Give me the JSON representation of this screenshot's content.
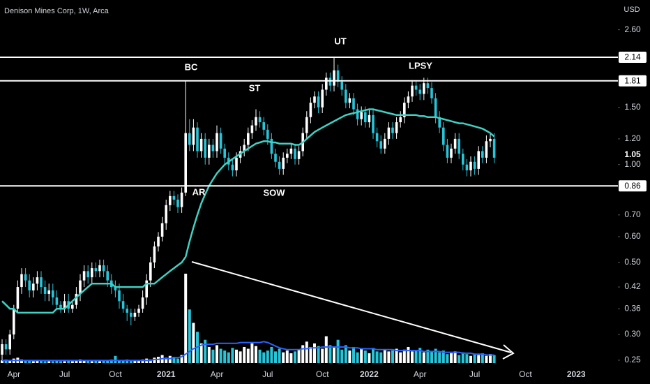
{
  "chart_data": {
    "type": "candlestick",
    "title": "Denison Mines Corp, 1W, Arca",
    "yaxis_label": "USD",
    "log": true,
    "ylim": [
      0.245,
      3.21
    ],
    "yticks": [
      {
        "value": 2.6,
        "label": "2.60"
      },
      {
        "value": 1.5,
        "label": "1.50"
      },
      {
        "value": 1.2,
        "label": "1.20"
      },
      {
        "value": 1.0,
        "label": "1.00"
      },
      {
        "value": 0.7,
        "label": "0.70"
      },
      {
        "value": 0.6,
        "label": "0.60"
      },
      {
        "value": 0.5,
        "label": "0.50"
      },
      0.42,
      0.36,
      {
        "value": 0.3,
        "label": "0.30"
      },
      0.25
    ],
    "levels": [
      2.14,
      1.81,
      0.86
    ],
    "annotations": [
      "BC",
      "ST",
      "UT",
      "LPSY",
      "AR",
      "SOW"
    ],
    "up_color": "#ffffff",
    "down_color": "#26c6da",
    "categories": [
      null,
      null,
      null,
      "Apr",
      null,
      null,
      null,
      null,
      null,
      null,
      null,
      null,
      null,
      null,
      null,
      null,
      "Jul",
      null,
      null,
      null,
      null,
      null,
      null,
      null,
      null,
      null,
      null,
      null,
      null,
      "Oct",
      null,
      null,
      null,
      null,
      null,
      null,
      null,
      null,
      null,
      null,
      null,
      null,
      "2021",
      null,
      null,
      null,
      null,
      null,
      null,
      null,
      null,
      null,
      null,
      null,
      null,
      "Apr",
      null,
      null,
      null,
      null,
      null,
      null,
      null,
      null,
      null,
      null,
      null,
      null,
      "Jul",
      null,
      null,
      null,
      null,
      null,
      null,
      null,
      null,
      null,
      null,
      null,
      null,
      null,
      "Oct",
      null,
      null,
      null,
      null,
      null,
      null,
      null,
      null,
      null,
      null,
      null,
      "2022",
      null,
      null,
      null,
      null,
      null,
      null,
      null,
      null,
      null,
      null,
      null,
      null,
      "Apr",
      null,
      null,
      null,
      null,
      null,
      null,
      null,
      null,
      null,
      null,
      null,
      null,
      null,
      "Jul",
      null,
      null,
      null,
      null,
      null,
      null,
      null,
      null,
      null,
      null,
      null,
      null,
      "Oct",
      null,
      null,
      null,
      null,
      null,
      null,
      null,
      null,
      null,
      null,
      null,
      null,
      "2023",
      null,
      null,
      null,
      null,
      null,
      null,
      null,
      null,
      null
    ],
    "open": [
      0.26,
      0.28,
      0.27,
      0.3,
      0.36,
      0.42,
      0.46,
      0.44,
      0.41,
      0.43,
      0.45,
      0.42,
      0.4,
      0.41,
      0.39,
      0.37,
      0.36,
      0.38,
      0.36,
      0.37,
      0.4,
      0.44,
      0.47,
      0.45,
      0.48,
      0.47,
      0.49,
      0.47,
      0.44,
      0.42,
      0.41,
      0.38,
      0.36,
      0.35,
      0.34,
      0.35,
      0.36,
      0.39,
      0.44,
      0.5,
      0.56,
      0.6,
      0.66,
      0.75,
      0.8,
      0.78,
      0.74,
      0.82,
      1.25,
      1.15,
      1.3,
      1.1,
      1.2,
      1.05,
      1.15,
      1.1,
      1.25,
      1.12,
      1.05,
      1.0,
      0.96,
      1.05,
      1.1,
      1.15,
      1.25,
      1.32,
      1.4,
      1.35,
      1.28,
      1.2,
      1.08,
      1.02,
      0.97,
      1.05,
      1.08,
      1.12,
      1.04,
      1.1,
      1.25,
      1.4,
      1.55,
      1.62,
      1.5,
      1.7,
      1.85,
      1.75,
      1.95,
      1.8,
      1.7,
      1.55,
      1.6,
      1.48,
      1.38,
      1.45,
      1.35,
      1.42,
      1.25,
      1.18,
      1.12,
      1.2,
      1.3,
      1.25,
      1.35,
      1.4,
      1.55,
      1.62,
      1.75,
      1.7,
      1.65,
      1.78,
      1.72,
      1.6,
      1.4,
      1.3,
      1.15,
      1.05,
      1.12,
      1.2,
      1.08,
      1.0,
      0.96,
      1.02,
      0.97,
      1.1,
      1.05,
      1.18,
      1.2,
      null,
      null,
      null,
      null,
      null,
      null,
      null,
      null,
      null,
      null,
      null,
      null,
      null,
      null,
      null,
      null,
      null,
      null,
      null,
      null,
      null,
      null,
      null,
      null,
      null,
      null,
      null,
      null,
      null,
      null
    ],
    "high": [
      0.29,
      0.29,
      0.31,
      0.37,
      0.44,
      0.48,
      0.48,
      0.46,
      0.45,
      0.47,
      0.47,
      0.44,
      0.43,
      0.43,
      0.41,
      0.38,
      0.4,
      0.4,
      0.38,
      0.42,
      0.46,
      0.49,
      0.49,
      0.5,
      0.5,
      0.51,
      0.51,
      0.49,
      0.46,
      0.44,
      0.43,
      0.4,
      0.37,
      0.36,
      0.36,
      0.37,
      0.41,
      0.46,
      0.52,
      0.58,
      0.62,
      0.69,
      0.78,
      0.83,
      0.83,
      0.81,
      0.85,
      1.81,
      1.38,
      1.38,
      1.35,
      1.25,
      1.25,
      1.2,
      1.2,
      1.32,
      1.3,
      1.16,
      1.09,
      1.04,
      1.09,
      1.14,
      1.2,
      1.3,
      1.37,
      1.48,
      1.46,
      1.4,
      1.33,
      1.25,
      1.12,
      1.06,
      1.09,
      1.12,
      1.16,
      1.16,
      1.14,
      1.3,
      1.46,
      1.61,
      1.68,
      1.68,
      1.77,
      1.92,
      1.92,
      2.14,
      2.03,
      1.87,
      1.77,
      1.66,
      1.66,
      1.54,
      1.51,
      1.51,
      1.48,
      1.48,
      1.3,
      1.23,
      1.25,
      1.35,
      1.35,
      1.4,
      1.46,
      1.61,
      1.68,
      1.82,
      1.82,
      1.77,
      1.85,
      1.85,
      1.79,
      1.66,
      1.46,
      1.35,
      1.2,
      1.16,
      1.25,
      1.25,
      1.12,
      1.04,
      1.06,
      1.06,
      1.14,
      1.14,
      1.23,
      1.25,
      1.25,
      null,
      null,
      null,
      null,
      null,
      null,
      null,
      null,
      null,
      null,
      null,
      null,
      null,
      null,
      null,
      null,
      null,
      null,
      null,
      null,
      null,
      null,
      null,
      null,
      null,
      null,
      null,
      null,
      null,
      null
    ],
    "low": [
      0.25,
      0.26,
      0.26,
      0.29,
      0.35,
      0.4,
      0.42,
      0.39,
      0.39,
      0.41,
      0.4,
      0.38,
      0.38,
      0.37,
      0.36,
      0.35,
      0.35,
      0.35,
      0.35,
      0.36,
      0.38,
      0.42,
      0.43,
      0.43,
      0.45,
      0.45,
      0.45,
      0.42,
      0.4,
      0.39,
      0.36,
      0.35,
      0.33,
      0.32,
      0.33,
      0.34,
      0.35,
      0.37,
      0.42,
      0.48,
      0.54,
      0.58,
      0.63,
      0.72,
      0.75,
      0.71,
      0.71,
      0.8,
      1.1,
      1.1,
      1.05,
      1.05,
      1.0,
      1.0,
      1.05,
      1.05,
      1.08,
      1.0,
      0.96,
      0.92,
      0.92,
      1.01,
      1.06,
      1.1,
      1.2,
      1.27,
      1.3,
      1.23,
      1.15,
      1.04,
      0.98,
      0.93,
      0.93,
      1.01,
      1.04,
      1.0,
      1.0,
      1.06,
      1.2,
      1.34,
      1.49,
      1.44,
      1.44,
      1.63,
      1.68,
      1.68,
      1.73,
      1.63,
      1.49,
      1.49,
      1.42,
      1.32,
      1.32,
      1.3,
      1.3,
      1.2,
      1.13,
      1.08,
      1.08,
      1.15,
      1.2,
      1.2,
      1.3,
      1.34,
      1.49,
      1.56,
      1.63,
      1.58,
      1.58,
      1.65,
      1.54,
      1.34,
      1.25,
      1.1,
      1.01,
      1.01,
      1.08,
      1.04,
      0.96,
      0.92,
      0.92,
      0.93,
      0.93,
      1.01,
      1.01,
      1.13,
      1.01,
      null,
      null,
      null,
      null,
      null,
      null,
      null,
      null,
      null,
      null,
      null,
      null,
      null,
      null,
      null,
      null,
      null,
      null,
      null,
      null,
      null,
      null,
      null,
      null,
      null,
      null,
      null,
      null,
      null,
      null
    ],
    "close": [
      0.28,
      0.27,
      0.3,
      0.36,
      0.42,
      0.46,
      0.44,
      0.41,
      0.43,
      0.45,
      0.42,
      0.4,
      0.41,
      0.39,
      0.37,
      0.36,
      0.38,
      0.36,
      0.37,
      0.4,
      0.44,
      0.47,
      0.45,
      0.48,
      0.47,
      0.49,
      0.47,
      0.44,
      0.42,
      0.41,
      0.38,
      0.36,
      0.35,
      0.34,
      0.35,
      0.36,
      0.39,
      0.44,
      0.5,
      0.56,
      0.6,
      0.66,
      0.75,
      0.8,
      0.78,
      0.74,
      0.82,
      1.25,
      1.15,
      1.3,
      1.1,
      1.2,
      1.05,
      1.15,
      1.1,
      1.25,
      1.12,
      1.05,
      1.0,
      0.96,
      1.05,
      1.1,
      1.15,
      1.25,
      1.32,
      1.4,
      1.35,
      1.28,
      1.2,
      1.08,
      1.02,
      0.97,
      1.05,
      1.08,
      1.12,
      1.04,
      1.1,
      1.25,
      1.4,
      1.55,
      1.62,
      1.5,
      1.7,
      1.85,
      1.75,
      1.95,
      1.8,
      1.7,
      1.55,
      1.6,
      1.48,
      1.38,
      1.45,
      1.35,
      1.42,
      1.25,
      1.18,
      1.12,
      1.2,
      1.3,
      1.25,
      1.35,
      1.4,
      1.55,
      1.62,
      1.75,
      1.7,
      1.65,
      1.78,
      1.72,
      1.6,
      1.4,
      1.3,
      1.15,
      1.05,
      1.12,
      1.2,
      1.08,
      1.0,
      0.96,
      1.02,
      0.97,
      1.1,
      1.05,
      1.18,
      1.2,
      1.05,
      null,
      null,
      null,
      null,
      null,
      null,
      null,
      null,
      null,
      null,
      null,
      null,
      null,
      null,
      null,
      null,
      null,
      null,
      null,
      null,
      null,
      null,
      null,
      null,
      null,
      null,
      null,
      null,
      null,
      null
    ],
    "volume": [
      3,
      4,
      3,
      5,
      6,
      4,
      3,
      3,
      2,
      3,
      3,
      2,
      2,
      2,
      3,
      2,
      2,
      3,
      2,
      3,
      4,
      3,
      3,
      2,
      3,
      2,
      3,
      3,
      4,
      8,
      3,
      3,
      4,
      3,
      3,
      3,
      4,
      5,
      4,
      6,
      7,
      9,
      6,
      8,
      7,
      5,
      9,
      100,
      60,
      45,
      35,
      22,
      26,
      18,
      15,
      20,
      16,
      14,
      12,
      17,
      15,
      13,
      18,
      16,
      22,
      19,
      15,
      12,
      14,
      18,
      13,
      16,
      12,
      14,
      11,
      13,
      15,
      20,
      24,
      18,
      22,
      19,
      16,
      30,
      20,
      18,
      26,
      15,
      20,
      14,
      18,
      12,
      16,
      14,
      11,
      17,
      13,
      12,
      15,
      13,
      14,
      16,
      12,
      15,
      18,
      13,
      14,
      17,
      12,
      15,
      13,
      16,
      12,
      14,
      10,
      11,
      13,
      9,
      12,
      10,
      8,
      10,
      9,
      11,
      8,
      10,
      9,
      null,
      null,
      null,
      null,
      null,
      null,
      null,
      null,
      null,
      null,
      null,
      null,
      null,
      null,
      null,
      null,
      null,
      null,
      null,
      null,
      null,
      null,
      null,
      null,
      null,
      null,
      null,
      null,
      null,
      null
    ],
    "ma": {
      "color": "#3fd1c4",
      "values": [
        0.38,
        0.37,
        0.36,
        0.36,
        0.35,
        0.35,
        0.35,
        0.35,
        0.35,
        0.35,
        0.35,
        0.35,
        0.35,
        0.35,
        0.36,
        0.36,
        0.36,
        0.37,
        0.38,
        0.39,
        0.4,
        0.41,
        0.42,
        0.43,
        0.43,
        0.43,
        0.43,
        0.43,
        0.43,
        0.42,
        0.42,
        0.42,
        0.42,
        0.42,
        0.42,
        0.42,
        0.42,
        0.43,
        0.43,
        0.43,
        0.44,
        0.45,
        0.46,
        0.47,
        0.48,
        0.49,
        0.5,
        0.52,
        0.58,
        0.64,
        0.7,
        0.76,
        0.81,
        0.86,
        0.9,
        0.94,
        0.97,
        1.0,
        1.02,
        1.04,
        1.06,
        1.08,
        1.1,
        1.12,
        1.14,
        1.16,
        1.17,
        1.18,
        1.18,
        1.17,
        1.17,
        1.16,
        1.16,
        1.16,
        1.16,
        1.15,
        1.15,
        1.17,
        1.2,
        1.23,
        1.26,
        1.28,
        1.3,
        1.32,
        1.34,
        1.36,
        1.38,
        1.4,
        1.42,
        1.43,
        1.44,
        1.45,
        1.46,
        1.47,
        1.48,
        1.48,
        1.47,
        1.46,
        1.45,
        1.44,
        1.43,
        1.42,
        1.42,
        1.42,
        1.42,
        1.42,
        1.42,
        1.41,
        1.41,
        1.4,
        1.4,
        1.4,
        1.39,
        1.38,
        1.37,
        1.36,
        1.35,
        1.34,
        1.34,
        1.33,
        1.32,
        1.31,
        1.3,
        1.29,
        1.27,
        1.25,
        1.22,
        null,
        null,
        null,
        null,
        null,
        null,
        null,
        null,
        null,
        null,
        null,
        null,
        null,
        null,
        null,
        null,
        null,
        null,
        null,
        null,
        null,
        null,
        null,
        null,
        null,
        null,
        null,
        null,
        null,
        null
      ]
    },
    "volume_ma": {
      "color": "#2962ff",
      "values": [
        3,
        3,
        3,
        3,
        3,
        3,
        3,
        3,
        3,
        3,
        3,
        3,
        3,
        3,
        3,
        3,
        3,
        3,
        3,
        3,
        3,
        3,
        3,
        3,
        3,
        3,
        3,
        3,
        3,
        3,
        3,
        3,
        3,
        3,
        3,
        3,
        3,
        3,
        3,
        4,
        4,
        5,
        5,
        5,
        6,
        6,
        7,
        10,
        13,
        16,
        18,
        20,
        21,
        21,
        21,
        22,
        22,
        22,
        22,
        22,
        22,
        23,
        23,
        23,
        23,
        23,
        23,
        24,
        23,
        21,
        19,
        17,
        16,
        15,
        15,
        15,
        15,
        16,
        16,
        17,
        17,
        17,
        18,
        18,
        18,
        18,
        18,
        18,
        18,
        17,
        17,
        17,
        16,
        16,
        16,
        16,
        15,
        15,
        15,
        15,
        15,
        14,
        14,
        14,
        14,
        14,
        14,
        14,
        13,
        13,
        13,
        13,
        13,
        12,
        12,
        12,
        12,
        12,
        11,
        11,
        11,
        10,
        10,
        10,
        9,
        9,
        9,
        null,
        null,
        null,
        null,
        null,
        null,
        null,
        null,
        null,
        null,
        null,
        null,
        null,
        null,
        null,
        null,
        null,
        null,
        null,
        null,
        null,
        null,
        null,
        null,
        null,
        null,
        null,
        null,
        null,
        null
      ]
    }
  }
}
